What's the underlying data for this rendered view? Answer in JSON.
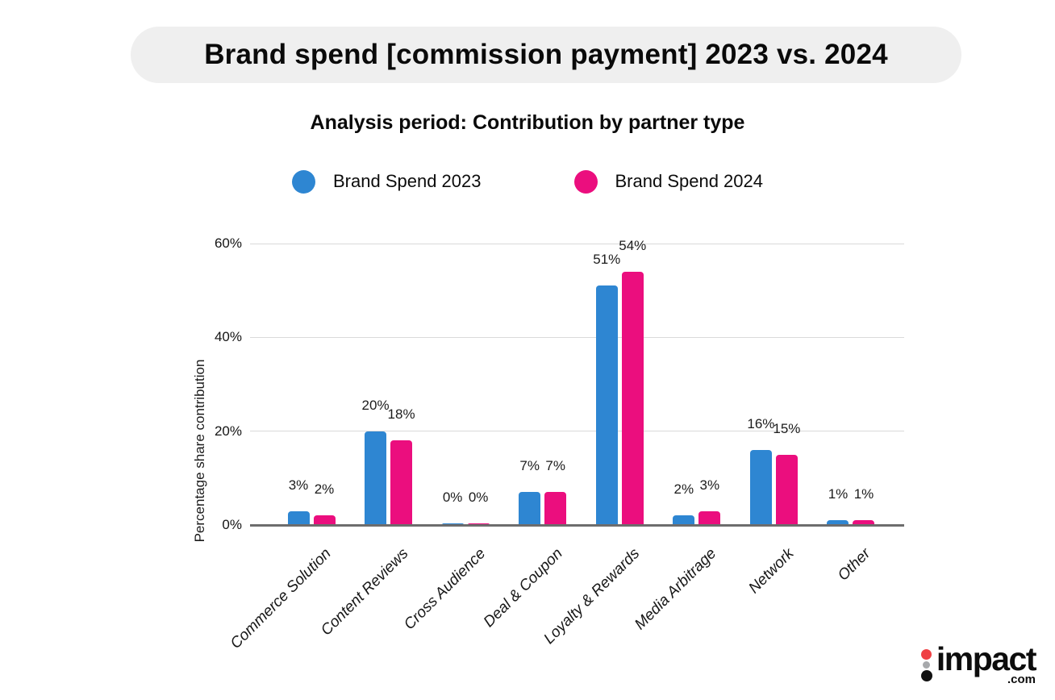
{
  "chart_data": {
    "type": "bar",
    "title": "Brand spend [commission payment] 2023 vs. 2024",
    "subtitle": "Analysis period: Contribution by partner type",
    "categories": [
      "Commerce Solution",
      "Content Reviews",
      "Cross Audience",
      "Deal & Coupon",
      "Loyalty & Rewards",
      "Media Arbitrage",
      "Network",
      "Other"
    ],
    "series": [
      {
        "name": "Brand Spend 2023",
        "color": "#2e86d2",
        "values": [
          3,
          20,
          0,
          7,
          51,
          2,
          16,
          1
        ]
      },
      {
        "name": "Brand Spend 2024",
        "color": "#eb0e7e",
        "values": [
          2,
          18,
          0,
          7,
          54,
          3,
          15,
          1
        ]
      }
    ],
    "value_suffix": "%",
    "ylabel": "Percentage share contribution",
    "xlabel": "",
    "yticks": [
      0,
      20,
      40,
      60
    ],
    "ylim": [
      0,
      60
    ],
    "grid": true,
    "legend_position": "top"
  },
  "logo": {
    "brand": "impact",
    "domain": ".com",
    "dot_colors": [
      "#ef4044",
      "#a7a9ac",
      "#111111"
    ]
  }
}
